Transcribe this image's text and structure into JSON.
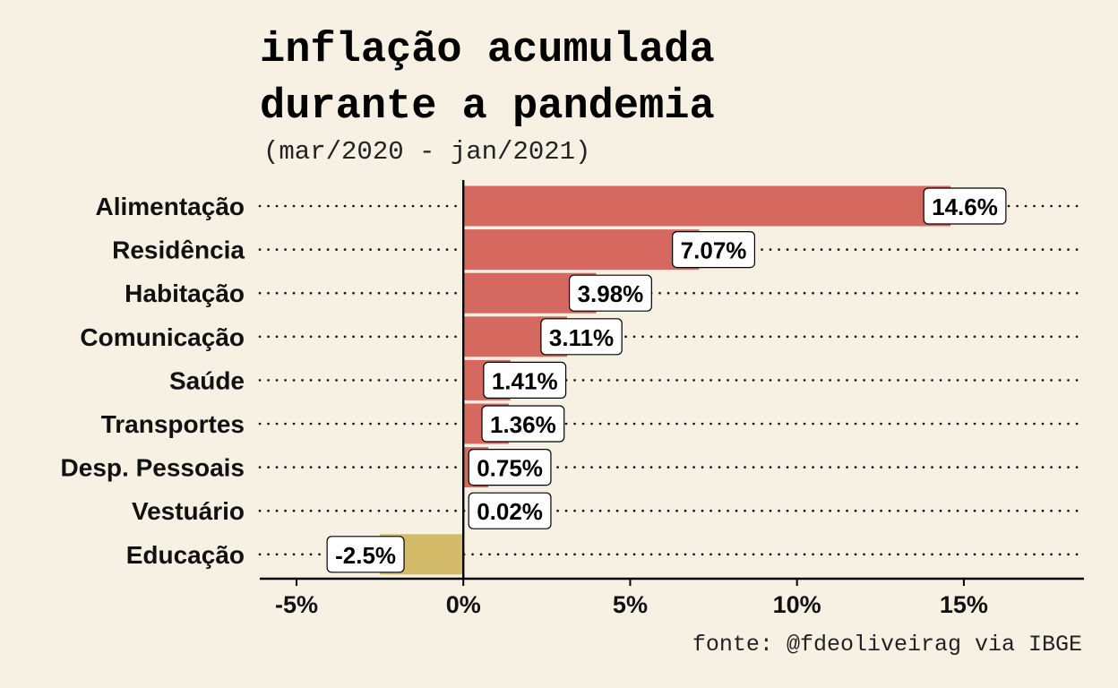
{
  "chart_data": {
    "type": "bar",
    "orientation": "horizontal",
    "title_lines": [
      "inflação acumulada",
      "durante a pandemia"
    ],
    "subtitle": "(mar/2020 - jan/2021)",
    "caption": "fonte: @fdeoliveirag via IBGE",
    "categories": [
      "Alimentação",
      "Residência",
      "Habitação",
      "Comunicação",
      "Saúde",
      "Transportes",
      "Desp. Pessoais",
      "Vestuário",
      "Educação"
    ],
    "values": [
      14.6,
      7.07,
      3.98,
      3.11,
      1.41,
      1.36,
      0.75,
      0.02,
      -2.5
    ],
    "data_labels": [
      "14.6%",
      "7.07%",
      "3.98%",
      "3.11%",
      "1.41%",
      "1.36%",
      "0.75%",
      "0.02%",
      "-2.5%"
    ],
    "xlim": [
      -6.1,
      18.6
    ],
    "x_ticks": [
      -5,
      0,
      5,
      10,
      15
    ],
    "x_tick_labels": [
      "-5%",
      "0%",
      "5%",
      "10%",
      "15%"
    ],
    "grid": "dotted horizontal lines per category",
    "colors": {
      "positive": "#d6695f",
      "negative": "#d4bb6a",
      "background": "#f7f1e4",
      "label_box": "#ffffff"
    }
  }
}
